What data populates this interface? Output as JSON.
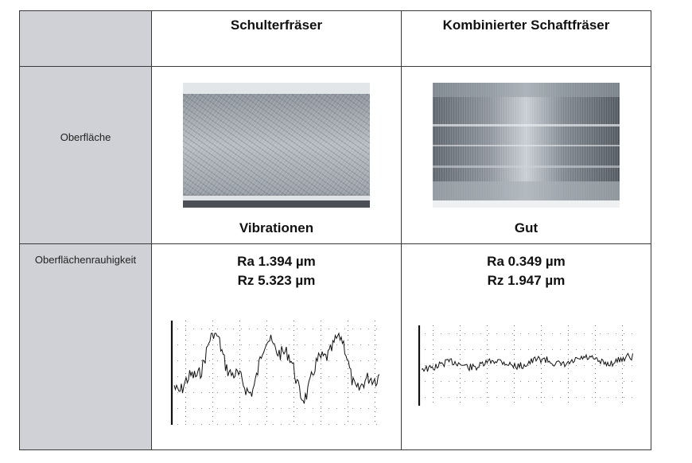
{
  "header": {
    "col1": "Schulterfräser",
    "col2": "Kombinierter Schaftfräser"
  },
  "rows": {
    "surface": {
      "label": "Oberfläche",
      "col1_verdict": "Vibrationen",
      "col2_verdict": "Gut"
    },
    "roughness": {
      "label": "Oberflächenrauhigkeit",
      "col1_ra": "Ra 1.394 µm",
      "col1_rz": "Rz 5.323 µm",
      "col2_ra": "Ra 0.349 µm",
      "col2_rz": "Rz 1.947 µm"
    }
  },
  "images": {
    "col1_photo": "machined-surface-vibration-photo",
    "col2_photo": "machined-surface-good-photo",
    "col1_profile": "roughness-profile-trace-rough",
    "col2_profile": "roughness-profile-trace-smooth"
  }
}
